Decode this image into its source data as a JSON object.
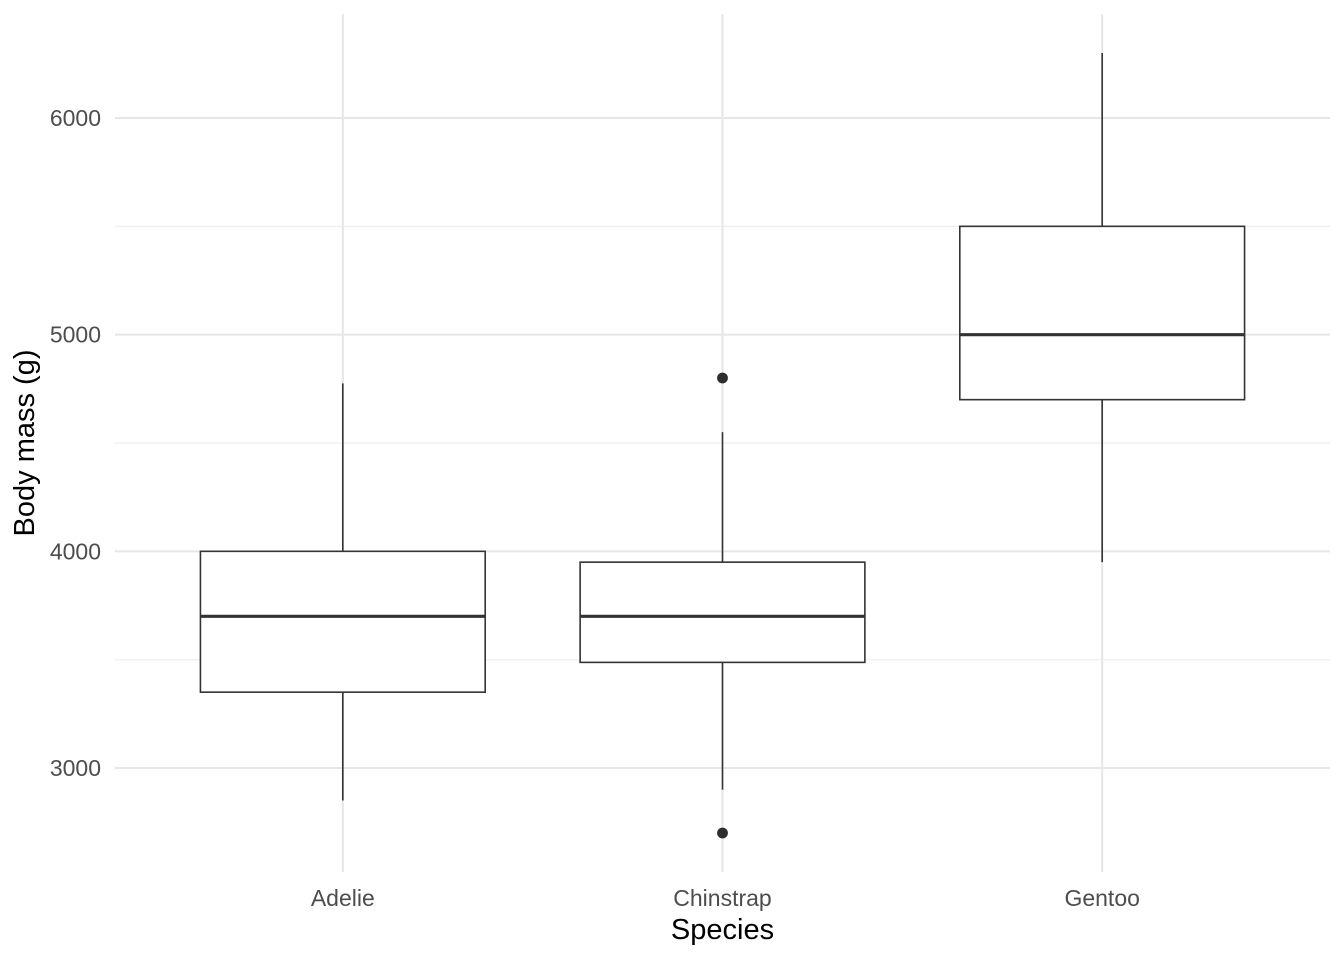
{
  "figure": {
    "background": "#ffffff"
  },
  "chart_data": {
    "type": "boxplot",
    "title": "",
    "xlabel": "Species",
    "ylabel": "Body mass (g)",
    "categories": [
      "Adelie",
      "Chinstrap",
      "Gentoo"
    ],
    "series": [
      {
        "category": "Adelie",
        "whisker_low": 2850,
        "q1": 3350,
        "median": 3700,
        "q3": 4000,
        "whisker_high": 4775,
        "outliers": []
      },
      {
        "category": "Chinstrap",
        "whisker_low": 2900,
        "q1": 3487.5,
        "median": 3700,
        "q3": 3950,
        "whisker_high": 4550,
        "outliers": [
          2700,
          4800
        ]
      },
      {
        "category": "Gentoo",
        "whisker_low": 3950,
        "q1": 4700,
        "median": 5000,
        "q3": 5500,
        "whisker_high": 6300,
        "outliers": []
      }
    ],
    "y_axis": {
      "ticks": [
        3000,
        4000,
        5000,
        6000
      ],
      "tick_labels": [
        "3000",
        "4000",
        "5000",
        "6000"
      ],
      "minor_ticks": [
        3500,
        4500,
        5500
      ],
      "range": [
        2520,
        6480
      ]
    },
    "x_axis": {
      "tick_labels": [
        "Adelie",
        "Chinstrap",
        "Gentoo"
      ]
    },
    "grid": true,
    "legend": false
  },
  "style": {
    "background_color": "#ffffff",
    "box_border_color": "#333333",
    "box_fill_color": "#ffffff",
    "median_color": "#333333",
    "whisker_color": "#333333",
    "outlier_color": "#2e2e2e",
    "grid_major_color": "#e6e6e6",
    "grid_minor_color": "#efefef",
    "tick_label_color": "#4d4d4d",
    "axis_title_color": "#000000"
  }
}
